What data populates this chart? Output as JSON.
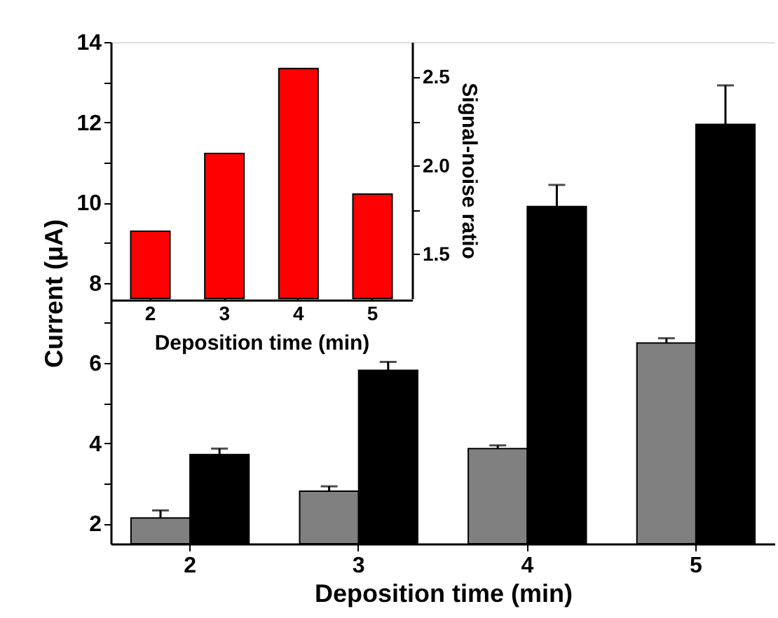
{
  "chart_data": [
    {
      "type": "bar",
      "categories": [
        "2",
        "3",
        "4",
        "5"
      ],
      "xlabel": "Deposition time (min)",
      "ylabel": "Current (μA)",
      "ylim": [
        1.5,
        14
      ],
      "yticks": [
        2,
        {
          "value": 3,
          "label": null
        },
        4,
        {
          "value": 5,
          "label": null
        },
        6,
        {
          "value": 7,
          "label": null
        },
        8,
        {
          "value": 9,
          "label": null
        },
        10,
        {
          "value": 11,
          "label": null
        },
        12,
        {
          "value": 13,
          "label": null
        },
        14
      ],
      "series": [
        {
          "color": "#808080",
          "values": [
            2.14,
            2.81,
            3.87,
            6.5
          ],
          "errors": [
            [
              2.14,
              2.33
            ],
            [
              2.81,
              2.93
            ],
            [
              3.87,
              3.95
            ],
            [
              6.5,
              6.62
            ]
          ]
        },
        {
          "color": "#000000",
          "values": [
            3.72,
            5.82,
            9.9,
            11.95
          ],
          "errors": [
            [
              3.72,
              3.87
            ],
            [
              5.82,
              6.03
            ],
            [
              9.9,
              10.44
            ],
            [
              11.95,
              12.92
            ]
          ]
        }
      ]
    },
    {
      "type": "bar",
      "categories": [
        "2",
        "3",
        "4",
        "5"
      ],
      "xlabel": "Deposition time (min)",
      "y2label": "Signal-noise ratio",
      "y2lim": [
        1.25,
        2.7
      ],
      "y2ticks": [
        {
          "value": 1.5,
          "label": "1.5"
        },
        {
          "value": 1.75,
          "label": null
        },
        {
          "value": 2.0,
          "label": "2.0"
        },
        {
          "value": 2.25,
          "label": null
        },
        {
          "value": 2.5,
          "label": "2.5"
        }
      ],
      "series": [
        {
          "color": "#ff0000",
          "axis": "y2",
          "values": [
            1.63,
            2.07,
            2.55,
            1.84
          ]
        }
      ]
    }
  ]
}
